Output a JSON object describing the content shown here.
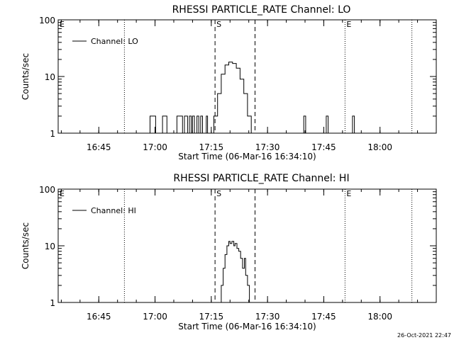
{
  "footer_timestamp": "26-Oct-2021 22:47",
  "chart_data": [
    {
      "type": "line",
      "title": "RHESSI PARTICLE_RATE Channel: LO",
      "xlabel": "Start Time (06-Mar-16 16:34:10)",
      "ylabel": "Counts/sec",
      "yscale": "log",
      "ylim": [
        1,
        100
      ],
      "xlim": [
        "16:34:10",
        "18:15:00"
      ],
      "x_ticks": [
        "16:45",
        "17:00",
        "17:15",
        "17:30",
        "17:45",
        "18:00"
      ],
      "y_ticks": [
        "1",
        "10",
        "100"
      ],
      "legend": "top-left",
      "series": [
        {
          "name": "Channel: LO",
          "x": [
            "16:34:10",
            "16:58:10",
            "16:58:40",
            "16:59:40",
            "17:00:10",
            "17:00:40",
            "17:01:30",
            "17:02:00",
            "17:02:40",
            "17:03:10",
            "17:03:40",
            "17:05:20",
            "17:05:50",
            "17:06:50",
            "17:07:20",
            "17:07:50",
            "17:08:10",
            "17:08:40",
            "17:09:10",
            "17:09:40",
            "17:10:00",
            "17:10:30",
            "17:11:10",
            "17:11:40",
            "17:12:10",
            "17:12:40",
            "17:13:10",
            "17:13:40",
            "17:14:00",
            "17:14:30",
            "17:15:00",
            "17:15:40",
            "17:16:40",
            "17:17:40",
            "17:18:40",
            "17:19:40",
            "17:20:40",
            "17:21:40",
            "17:22:40",
            "17:23:40",
            "17:24:40",
            "17:25:10",
            "17:25:40",
            "17:26:10",
            "17:26:40",
            "17:27:10",
            "17:27:40",
            "17:39:10",
            "17:39:40",
            "17:40:10",
            "17:45:10",
            "17:45:40",
            "17:46:10",
            "17:52:10",
            "17:52:40",
            "17:53:10",
            "18:15:00"
          ],
          "y": [
            1,
            1,
            2,
            2,
            1,
            1,
            1,
            2,
            2,
            1,
            1,
            1,
            2,
            2,
            1,
            2,
            2,
            1,
            2,
            1,
            2,
            1,
            2,
            1,
            2,
            1,
            1,
            2,
            1,
            1,
            1,
            2,
            5,
            11,
            16,
            18,
            17,
            14,
            9,
            5,
            2,
            2,
            1,
            1,
            1,
            1,
            1,
            1,
            2,
            1,
            1,
            2,
            1,
            1,
            2,
            1,
            1
          ]
        }
      ],
      "annotations": [
        {
          "label": "E",
          "x": "16:34:10",
          "style": "none"
        },
        {
          "label": "",
          "x": "16:51:50",
          "style": "dotted"
        },
        {
          "label": "S",
          "x": "17:16:00",
          "style": "dashed"
        },
        {
          "label": "",
          "x": "17:26:40",
          "style": "dashed"
        },
        {
          "label": "E",
          "x": "17:50:40",
          "style": "dotted"
        },
        {
          "label": "",
          "x": "18:08:30",
          "style": "dotted"
        }
      ]
    },
    {
      "type": "line",
      "title": "RHESSI PARTICLE_RATE Channel: HI",
      "xlabel": "Start Time (06-Mar-16 16:34:10)",
      "ylabel": "Counts/sec",
      "yscale": "log",
      "ylim": [
        1,
        100
      ],
      "xlim": [
        "16:34:10",
        "18:15:00"
      ],
      "x_ticks": [
        "16:45",
        "17:00",
        "17:15",
        "17:30",
        "17:45",
        "18:00"
      ],
      "y_ticks": [
        "1",
        "10",
        "100"
      ],
      "legend": "top-left",
      "series": [
        {
          "name": "Channel: HI",
          "x": [
            "17:17:10",
            "17:17:40",
            "17:18:10",
            "17:18:40",
            "17:19:10",
            "17:19:40",
            "17:20:00",
            "17:20:30",
            "17:21:00",
            "17:21:20",
            "17:21:50",
            "17:22:20",
            "17:22:50",
            "17:23:20",
            "17:23:50",
            "17:24:10",
            "17:24:40",
            "17:25:10"
          ],
          "y": [
            1,
            2,
            4,
            7,
            10,
            12,
            11,
            12,
            10,
            11,
            9,
            8,
            6,
            4,
            6,
            3,
            2,
            1
          ]
        }
      ],
      "annotations": [
        {
          "label": "E",
          "x": "16:34:10",
          "style": "none"
        },
        {
          "label": "",
          "x": "16:51:50",
          "style": "dotted"
        },
        {
          "label": "S",
          "x": "17:16:00",
          "style": "dashed"
        },
        {
          "label": "",
          "x": "17:26:40",
          "style": "dashed"
        },
        {
          "label": "E",
          "x": "17:50:40",
          "style": "dotted"
        },
        {
          "label": "",
          "x": "18:08:30",
          "style": "dotted"
        }
      ]
    }
  ]
}
